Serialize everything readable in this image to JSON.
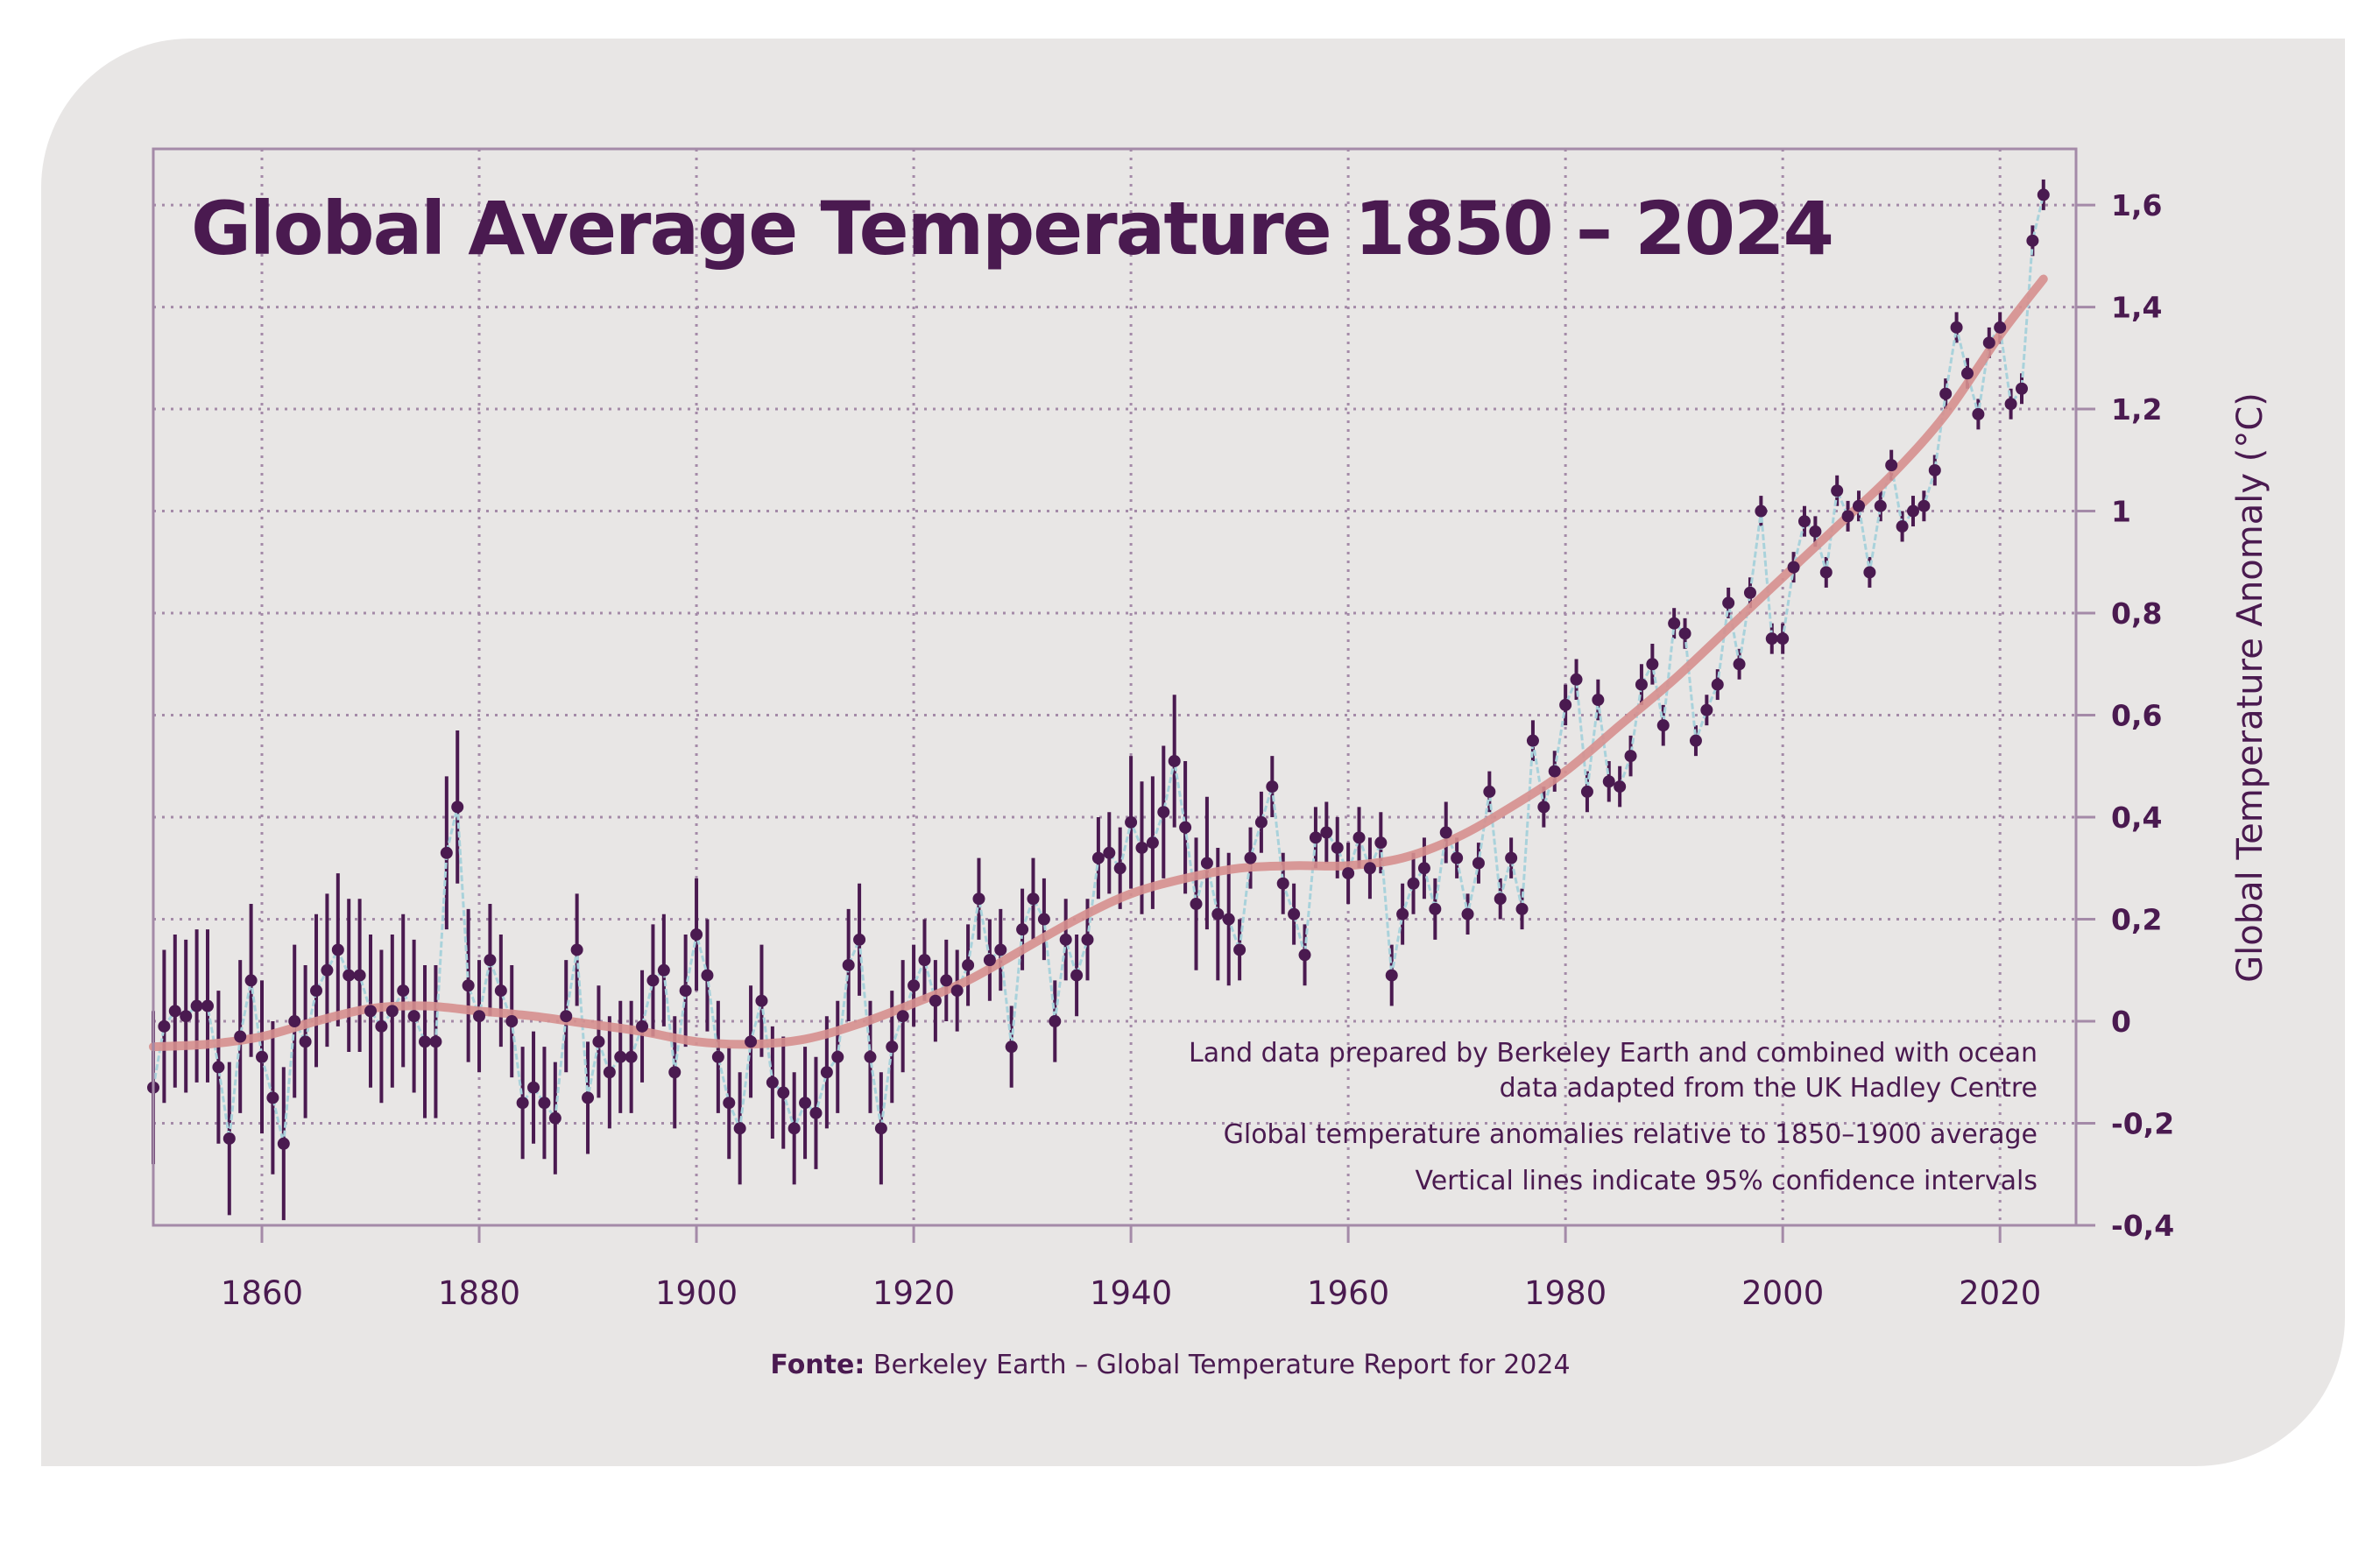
{
  "chart_data": {
    "type": "line",
    "title": "Global Average Temperature 1850 – 2024",
    "ylabel": "Global Temperature Anomaly (°C)",
    "xlabel": "",
    "xlim": [
      1850,
      2027
    ],
    "ylim": [
      -0.4,
      1.71
    ],
    "grid": true,
    "y_axis_side": "right",
    "x_ticks": [
      1860,
      1880,
      1900,
      1920,
      1940,
      1960,
      1980,
      2000,
      2020
    ],
    "x_tick_labels": [
      "1860",
      "1880",
      "1900",
      "1920",
      "1940",
      "1960",
      "1980",
      "2000",
      "2020"
    ],
    "y_ticks": [
      -0.4,
      -0.2,
      0,
      0.2,
      0.4,
      0.6,
      0.8,
      1,
      1.2,
      1.4,
      1.6
    ],
    "y_tick_labels": [
      "-0,4",
      "-0,2",
      "0",
      "0,2",
      "0,4",
      "0,6",
      "0,8",
      "1",
      "1,2",
      "1,4",
      "1,6"
    ],
    "annual": {
      "start_year": 1850,
      "values": [
        -0.13,
        -0.01,
        0.02,
        0.01,
        0.03,
        0.03,
        -0.09,
        -0.23,
        -0.03,
        0.08,
        -0.07,
        -0.15,
        -0.24,
        0.0,
        -0.04,
        0.06,
        0.1,
        0.14,
        0.09,
        0.09,
        0.02,
        -0.01,
        0.02,
        0.06,
        0.01,
        -0.04,
        -0.04,
        0.33,
        0.42,
        0.07,
        0.01,
        0.12,
        0.06,
        0.0,
        -0.16,
        -0.13,
        -0.16,
        -0.19,
        0.01,
        0.14,
        -0.15,
        -0.04,
        -0.1,
        -0.07,
        -0.07,
        -0.01,
        0.08,
        0.1,
        -0.1,
        0.06,
        0.17,
        0.09,
        -0.07,
        -0.16,
        -0.21,
        -0.04,
        0.04,
        -0.12,
        -0.14,
        -0.21,
        -0.16,
        -0.18,
        -0.1,
        -0.07,
        0.11,
        0.16,
        -0.07,
        -0.21,
        -0.05,
        0.01,
        0.07,
        0.12,
        0.04,
        0.08,
        0.06,
        0.11,
        0.24,
        0.12,
        0.14,
        -0.05,
        0.18,
        0.24,
        0.2,
        0.0,
        0.16,
        0.09,
        0.16,
        0.32,
        0.33,
        0.3,
        0.39,
        0.34,
        0.35,
        0.41,
        0.51,
        0.38,
        0.23,
        0.31,
        0.21,
        0.2,
        0.14,
        0.32,
        0.39,
        0.46,
        0.27,
        0.21,
        0.13,
        0.36,
        0.37,
        0.34,
        0.29,
        0.36,
        0.3,
        0.35,
        0.09,
        0.21,
        0.27,
        0.3,
        0.22,
        0.37,
        0.32,
        0.21,
        0.31,
        0.45,
        0.24,
        0.32,
        0.22,
        0.55,
        0.42,
        0.49,
        0.62,
        0.67,
        0.45,
        0.63,
        0.47,
        0.46,
        0.52,
        0.66,
        0.7,
        0.58,
        0.78,
        0.76,
        0.55,
        0.61,
        0.66,
        0.82,
        0.7,
        0.84,
        1.0,
        0.75,
        0.75,
        0.89,
        0.98,
        0.96,
        0.88,
        1.04,
        0.99,
        1.01,
        0.88,
        1.01,
        1.09,
        0.97,
        1.0,
        1.01,
        1.08,
        1.23,
        1.36,
        1.27,
        1.19,
        1.33,
        1.36,
        1.21,
        1.24,
        1.53,
        1.62
      ],
      "ci95_halfwidth_by_period": [
        {
          "from": 1850,
          "to": 1879,
          "value": 0.15
        },
        {
          "from": 1880,
          "to": 1919,
          "value": 0.11
        },
        {
          "from": 1920,
          "to": 1939,
          "value": 0.08
        },
        {
          "from": 1940,
          "to": 1949,
          "value": 0.13
        },
        {
          "from": 1950,
          "to": 1969,
          "value": 0.06
        },
        {
          "from": 1970,
          "to": 1989,
          "value": 0.04
        },
        {
          "from": 1990,
          "to": 2024,
          "value": 0.03
        }
      ]
    },
    "smoothed": {
      "years": [
        1850,
        1855,
        1860,
        1865,
        1870,
        1875,
        1880,
        1885,
        1890,
        1895,
        1900,
        1905,
        1910,
        1915,
        1920,
        1925,
        1930,
        1935,
        1940,
        1945,
        1950,
        1955,
        1960,
        1965,
        1970,
        1975,
        1980,
        1985,
        1990,
        1995,
        2000,
        2005,
        2010,
        2015,
        2020,
        2024
      ],
      "values": [
        -0.05,
        -0.045,
        -0.03,
        0.0,
        0.025,
        0.03,
        0.02,
        0.01,
        -0.005,
        -0.02,
        -0.04,
        -0.045,
        -0.035,
        -0.005,
        0.035,
        0.08,
        0.14,
        0.2,
        0.25,
        0.28,
        0.3,
        0.305,
        0.305,
        0.32,
        0.36,
        0.42,
        0.49,
        0.58,
        0.67,
        0.77,
        0.87,
        0.97,
        1.07,
        1.19,
        1.345,
        1.455
      ]
    },
    "colors": {
      "points": "#4a1a50",
      "connector": "#a9d2db",
      "smoothed": "#d68f8e",
      "grid": "#a48aa8",
      "frame": "#a48aa8",
      "background": "#e8e6e5"
    },
    "notes": [
      "Land data prepared by Berkeley Earth and combined with ocean",
      "data adapted from the UK Hadley Centre",
      "Global temperature anomalies relative to 1850–1900 average",
      "Vertical lines indicate 95% confidence intervals"
    ],
    "source_label": "Fonte:",
    "source_text": " Berkeley Earth – Global Temperature Report for 2024"
  }
}
